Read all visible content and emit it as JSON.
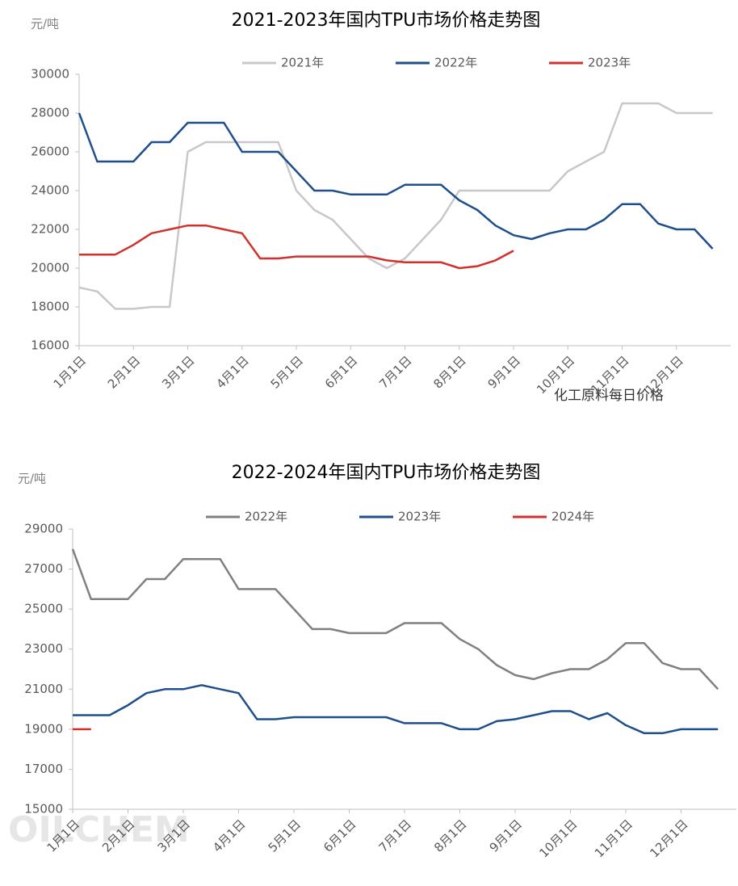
{
  "chart_data": [
    {
      "type": "line",
      "title": "2021-2023年国内TPU市场价格走势图",
      "y_label": "元/吨",
      "categories": [
        "1月1日",
        null,
        null,
        "2月1日",
        null,
        null,
        "3月1日",
        null,
        null,
        "4月1日",
        null,
        null,
        "5月1日",
        null,
        null,
        "6月1日",
        null,
        null,
        "7月1日",
        null,
        null,
        "8月1日",
        null,
        null,
        "9月1日",
        null,
        null,
        "10月1日",
        null,
        null,
        "11月1日",
        null,
        null,
        "12月1日",
        null,
        null
      ],
      "series": [
        {
          "name": "2021年",
          "color": "#c8c8c8",
          "values": [
            19000,
            18800,
            17900,
            17900,
            18000,
            18000,
            26000,
            26500,
            26500,
            26500,
            26500,
            26500,
            24000,
            23000,
            22500,
            21500,
            20500,
            20000,
            20500,
            21500,
            22500,
            24000,
            24000,
            24000,
            24000,
            24000,
            24000,
            25000,
            25500,
            26000,
            28500,
            28500,
            28500,
            28000,
            28000,
            28000
          ]
        },
        {
          "name": "2022年",
          "color": "#1f4e8c",
          "values": [
            28000,
            25500,
            25500,
            25500,
            26500,
            26500,
            27500,
            27500,
            27500,
            26000,
            26000,
            26000,
            25000,
            24000,
            24000,
            23800,
            23800,
            23800,
            24300,
            24300,
            24300,
            23500,
            23000,
            22200,
            21700,
            21500,
            21800,
            22000,
            22000,
            22500,
            23300,
            23300,
            22300,
            22000,
            22000,
            21000
          ]
        },
        {
          "name": "2023年",
          "color": "#d0312d",
          "values": [
            20700,
            20700,
            20700,
            21200,
            21800,
            22000,
            22200,
            22200,
            22000,
            21800,
            20500,
            20500,
            20600,
            20600,
            20600,
            20600,
            20600,
            20400,
            20300,
            20300,
            20300,
            20000,
            20100,
            20400,
            20900,
            null,
            null,
            null,
            null,
            null,
            null,
            null,
            null,
            null,
            null,
            null
          ]
        }
      ],
      "ylim": [
        16000,
        30000
      ],
      "yticks": [
        16000,
        18000,
        20000,
        22000,
        24000,
        26000,
        28000,
        30000
      ],
      "legend": "top",
      "watermark": "化工原料每日价格"
    },
    {
      "type": "line",
      "title": "2022-2024年国内TPU市场价格走势图",
      "y_label": "元/吨",
      "categories": [
        "1月1日",
        null,
        null,
        "2月1日",
        null,
        null,
        "3月1日",
        null,
        null,
        "4月1日",
        null,
        null,
        "5月1日",
        null,
        null,
        "6月1日",
        null,
        null,
        "7月1日",
        null,
        null,
        "8月1日",
        null,
        null,
        "9月1日",
        null,
        null,
        "10月1日",
        null,
        null,
        "11月1日",
        null,
        null,
        "12月1日",
        null,
        null
      ],
      "series": [
        {
          "name": "2022年",
          "color": "#808080",
          "values": [
            28000,
            25500,
            25500,
            25500,
            26500,
            26500,
            27500,
            27500,
            27500,
            26000,
            26000,
            26000,
            25000,
            24000,
            24000,
            23800,
            23800,
            23800,
            24300,
            24300,
            24300,
            23500,
            23000,
            22200,
            21700,
            21500,
            21800,
            22000,
            22000,
            22500,
            23300,
            23300,
            22300,
            22000,
            22000,
            21000
          ]
        },
        {
          "name": "2023年",
          "color": "#1f4e8c",
          "values": [
            19700,
            19700,
            19700,
            20200,
            20800,
            21000,
            21000,
            21200,
            21000,
            20800,
            19500,
            19500,
            19600,
            19600,
            19600,
            19600,
            19600,
            19600,
            19300,
            19300,
            19300,
            19000,
            19000,
            19400,
            19500,
            19700,
            19900,
            19900,
            19500,
            19800,
            19200,
            18800,
            18800,
            19000,
            19000,
            19000
          ]
        },
        {
          "name": "2024年",
          "color": "#d0312d",
          "values": [
            19000,
            19000,
            null,
            null,
            null,
            null,
            null,
            null,
            null,
            null,
            null,
            null,
            null,
            null,
            null,
            null,
            null,
            null,
            null,
            null,
            null,
            null,
            null,
            null,
            null,
            null,
            null,
            null,
            null,
            null,
            null,
            null,
            null,
            null,
            null,
            null
          ]
        }
      ],
      "ylim": [
        15000,
        29000
      ],
      "yticks": [
        15000,
        17000,
        19000,
        21000,
        23000,
        25000,
        27000,
        29000
      ],
      "legend": "top",
      "watermark": "OILCHEM"
    }
  ]
}
